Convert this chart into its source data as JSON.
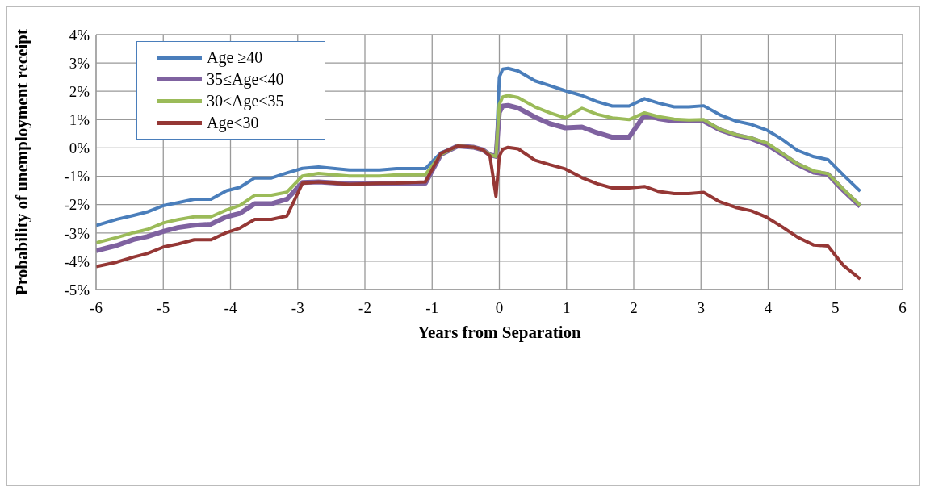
{
  "chart_data": {
    "type": "line",
    "xlabel": "Years from Separation",
    "ylabel": "Probability of unemployment  receipt",
    "x": [
      -6,
      -5.69,
      -5.44,
      -5.24,
      -4.99,
      -4.78,
      -4.54,
      -4.29,
      -4.06,
      -3.86,
      -3.64,
      -3.39,
      -3.16,
      -2.93,
      -2.69,
      -2.23,
      -1.78,
      -1.53,
      -1.1,
      -0.87,
      -0.62,
      -0.39,
      -0.25,
      -0.14,
      -0.05,
      0,
      0.05,
      0.13,
      0.28,
      0.53,
      0.75,
      0.98,
      1.23,
      1.45,
      1.68,
      1.93,
      2.16,
      2.36,
      2.6,
      2.82,
      3.04,
      3.28,
      3.52,
      3.75,
      3.98,
      4.21,
      4.43,
      4.68,
      4.89,
      5.12,
      5.37
    ],
    "series": [
      {
        "name": "Age ≥40",
        "color": "#4a7ebb",
        "values": [
          -2.74,
          -2.52,
          -2.38,
          -2.26,
          -2.03,
          -1.93,
          -1.81,
          -1.81,
          -1.51,
          -1.39,
          -1.06,
          -1.06,
          -0.88,
          -0.72,
          -0.67,
          -0.78,
          -0.78,
          -0.73,
          -0.73,
          -0.17,
          0.07,
          0.03,
          -0.06,
          -0.24,
          -0.3,
          2.5,
          2.78,
          2.81,
          2.72,
          2.37,
          2.2,
          2.02,
          1.85,
          1.64,
          1.48,
          1.48,
          1.74,
          1.59,
          1.45,
          1.45,
          1.49,
          1.17,
          0.95,
          0.83,
          0.63,
          0.3,
          -0.08,
          -0.31,
          -0.41,
          -0.96,
          -1.53
        ]
      },
      {
        "name": "35≤Age<40",
        "color": "#7f62a0",
        "values": [
          -3.63,
          -3.44,
          -3.23,
          -3.13,
          -2.94,
          -2.81,
          -2.73,
          -2.69,
          -2.43,
          -2.31,
          -1.97,
          -1.97,
          -1.81,
          -1.22,
          -1.2,
          -1.27,
          -1.25,
          -1.24,
          -1.24,
          -0.23,
          0.07,
          0.03,
          -0.06,
          -0.24,
          -0.3,
          1.26,
          1.48,
          1.5,
          1.41,
          1.09,
          0.86,
          0.71,
          0.74,
          0.54,
          0.38,
          0.38,
          1.16,
          1.04,
          0.95,
          0.95,
          0.95,
          0.64,
          0.45,
          0.33,
          0.12,
          -0.22,
          -0.57,
          -0.86,
          -0.93,
          -1.5,
          -2.06
        ]
      },
      {
        "name": "30≤Age<35",
        "color": "#9bbb59",
        "values": [
          -3.35,
          -3.16,
          -2.99,
          -2.88,
          -2.64,
          -2.53,
          -2.43,
          -2.43,
          -2.19,
          -2.03,
          -1.67,
          -1.67,
          -1.56,
          -0.99,
          -0.9,
          -0.99,
          -0.99,
          -0.95,
          -0.94,
          -0.23,
          0.07,
          0.03,
          -0.06,
          -0.24,
          -0.3,
          1.54,
          1.8,
          1.85,
          1.78,
          1.45,
          1.24,
          1.06,
          1.4,
          1.19,
          1.06,
          1.0,
          1.24,
          1.11,
          1.02,
          0.99,
          1.0,
          0.66,
          0.47,
          0.35,
          0.18,
          -0.19,
          -0.55,
          -0.81,
          -0.91,
          -1.46,
          -2.03
        ]
      },
      {
        "name": "Age<30",
        "color": "#953735",
        "values": [
          -4.19,
          -4.03,
          -3.85,
          -3.73,
          -3.49,
          -3.39,
          -3.24,
          -3.24,
          -2.99,
          -2.83,
          -2.52,
          -2.52,
          -2.4,
          -1.25,
          -1.2,
          -1.28,
          -1.25,
          -1.24,
          -1.2,
          -0.19,
          0.07,
          0.03,
          -0.06,
          -0.28,
          -1.7,
          -0.29,
          -0.05,
          0.02,
          -0.03,
          -0.43,
          -0.59,
          -0.74,
          -1.05,
          -1.26,
          -1.41,
          -1.41,
          -1.36,
          -1.53,
          -1.61,
          -1.61,
          -1.57,
          -1.9,
          -2.1,
          -2.22,
          -2.45,
          -2.79,
          -3.14,
          -3.43,
          -3.46,
          -4.15,
          -4.63
        ]
      }
    ],
    "xlim": [
      -6,
      6
    ],
    "xticks": [
      -6,
      -5,
      -4,
      -3,
      -2,
      -1,
      0,
      1,
      2,
      3,
      4,
      5,
      6
    ],
    "ylim": [
      -5,
      4
    ],
    "yticks": [
      {
        "value": -5,
        "label": "-5%"
      },
      {
        "value": -4,
        "label": "-4%"
      },
      {
        "value": -3,
        "label": "-3%"
      },
      {
        "value": -2,
        "label": "-2%"
      },
      {
        "value": -1,
        "label": "-1%"
      },
      {
        "value": 0,
        "label": "0%"
      },
      {
        "value": 1,
        "label": "1%"
      },
      {
        "value": 2,
        "label": "2%"
      },
      {
        "value": 3,
        "label": "3%"
      },
      {
        "value": 4,
        "label": "4%"
      }
    ],
    "grid": true,
    "legend": "top left"
  }
}
